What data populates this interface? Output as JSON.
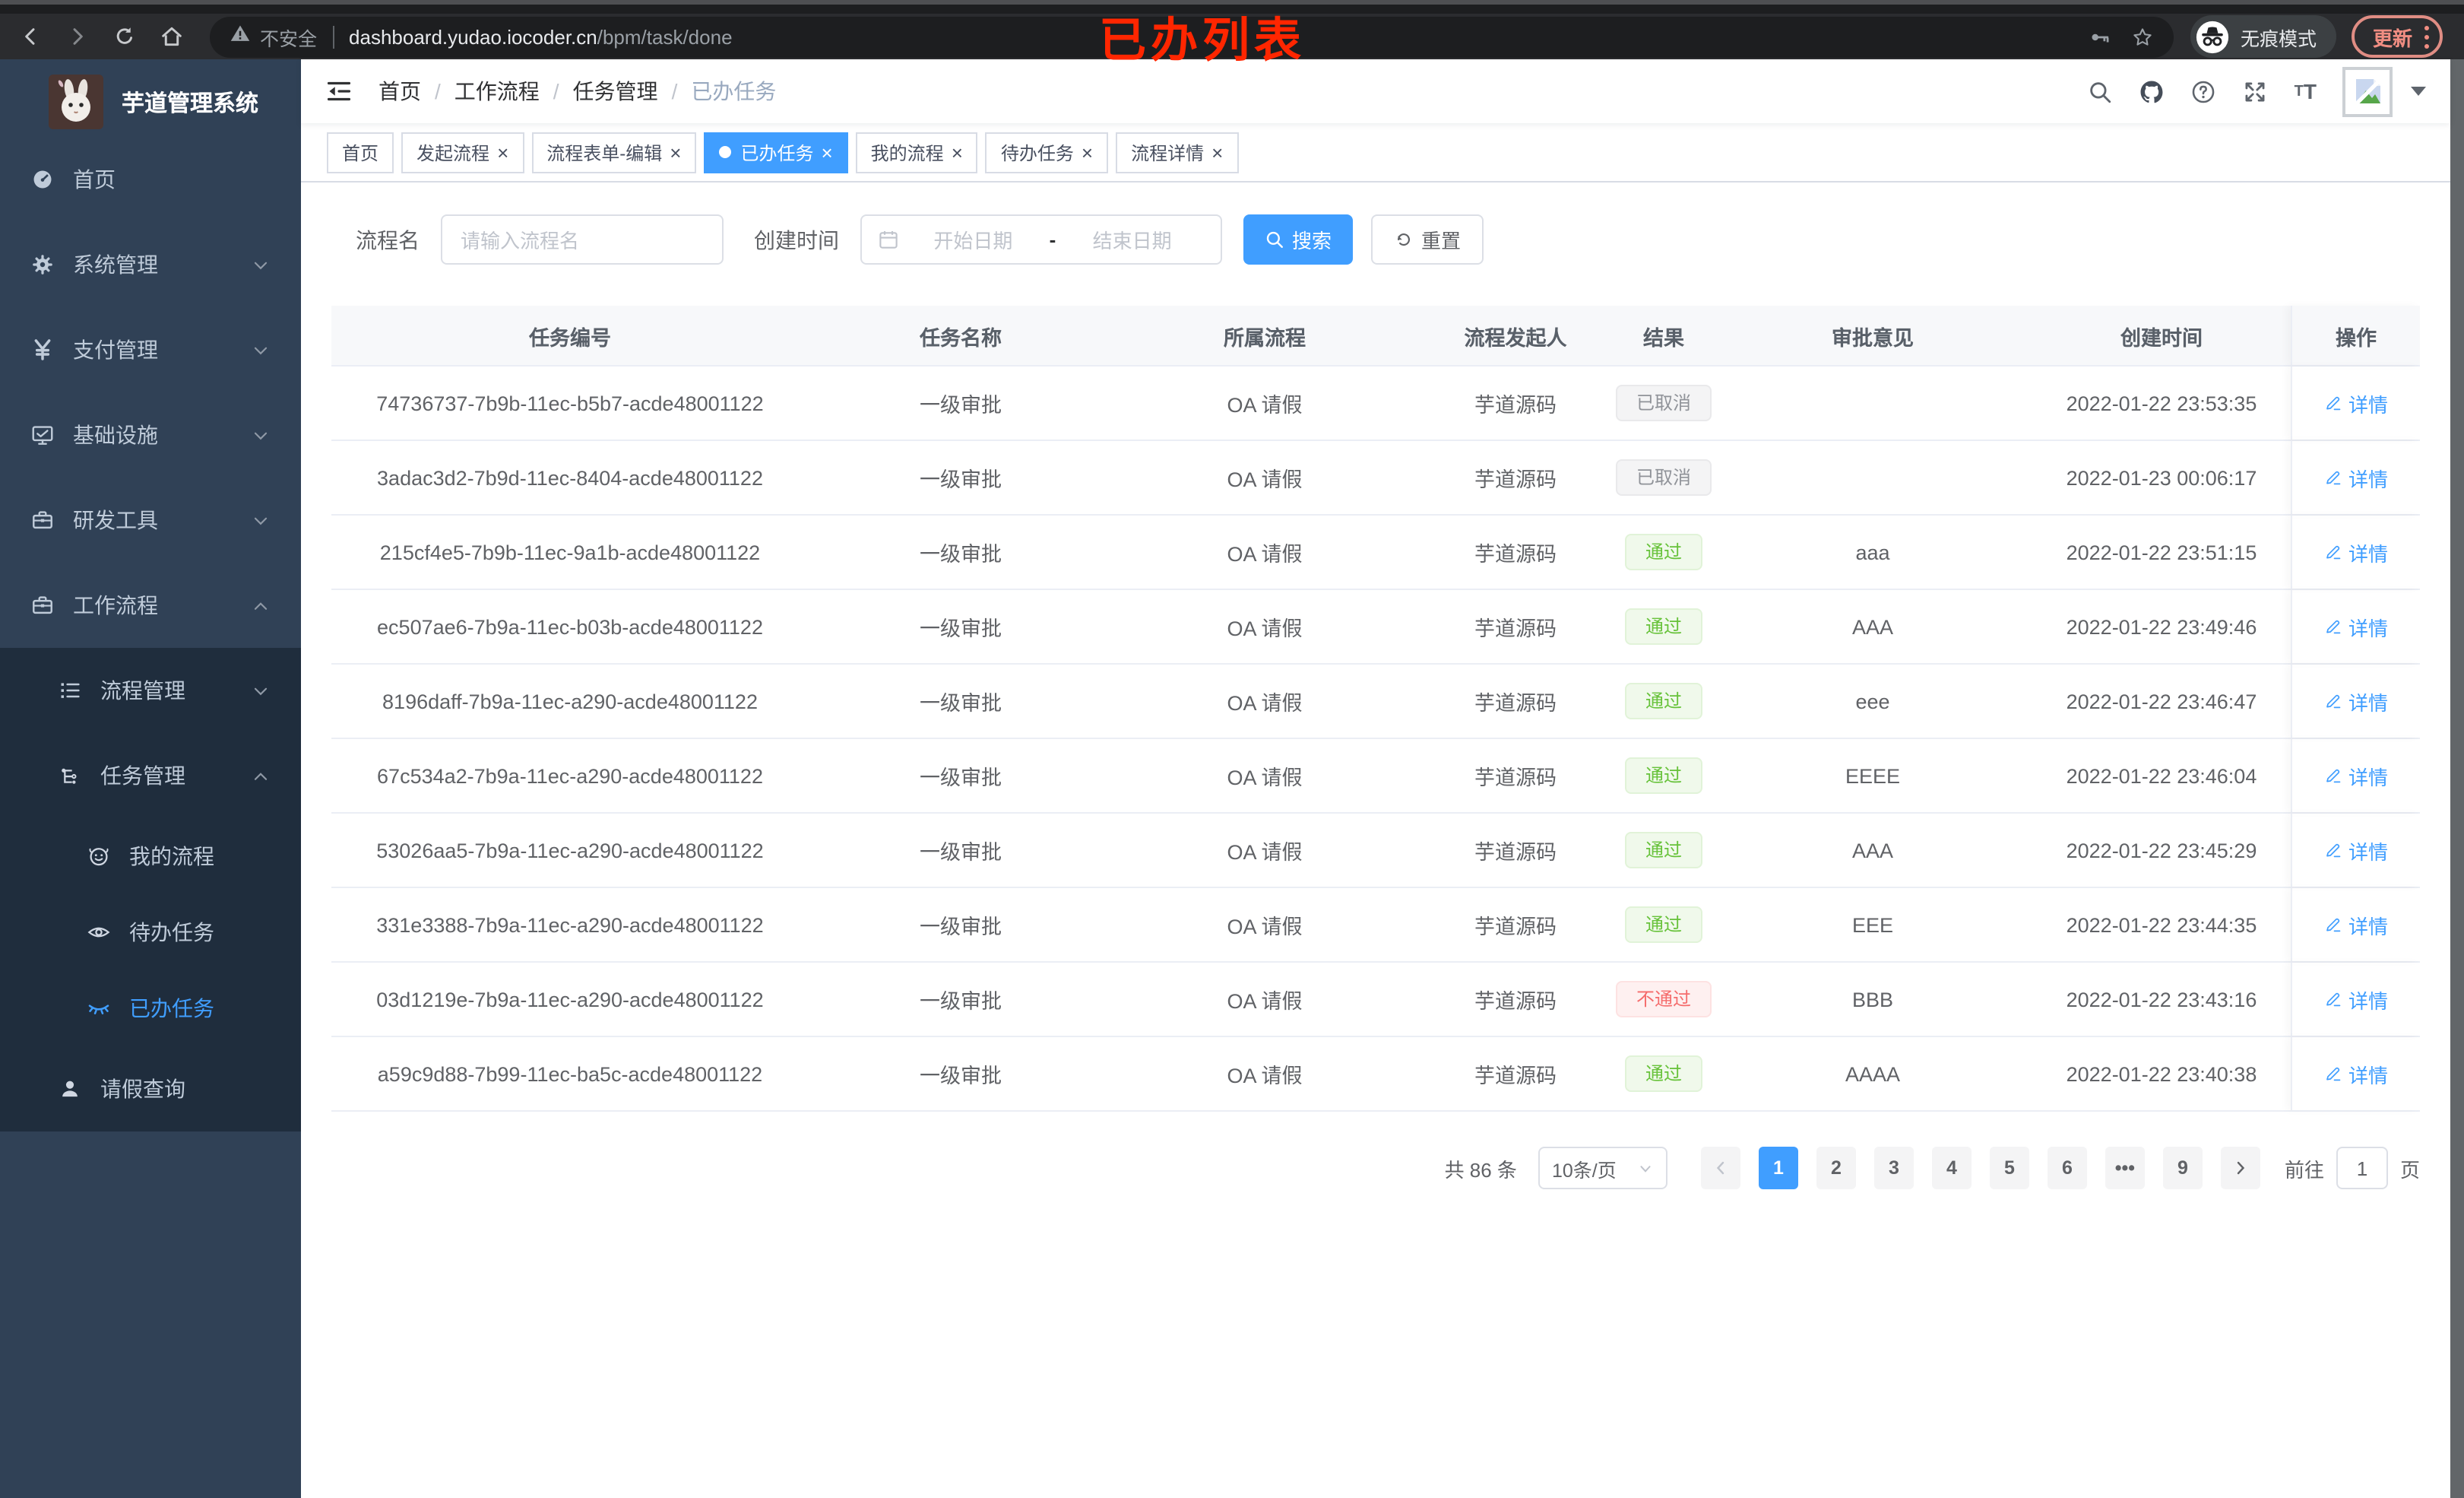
{
  "browser": {
    "security_label": "不安全",
    "url_host": "dashboard.yudao.iocoder.cn",
    "url_path": "/bpm/task/done",
    "incognito_label": "无痕模式",
    "update_label": "更新"
  },
  "annotation": {
    "text": "已办列表",
    "color": "#ff2600"
  },
  "sidebar": {
    "title": "芋道管理系统",
    "items": [
      {
        "name": "home",
        "label": "首页",
        "icon": "dashboard",
        "level": 1,
        "chevron": null,
        "dark": false,
        "active": false
      },
      {
        "name": "system",
        "label": "系统管理",
        "icon": "gear",
        "level": 1,
        "chevron": "down",
        "dark": false,
        "active": false
      },
      {
        "name": "payment",
        "label": "支付管理",
        "icon": "yen",
        "level": 1,
        "chevron": "down",
        "dark": false,
        "active": false
      },
      {
        "name": "infrastructure",
        "label": "基础设施",
        "icon": "monitor",
        "level": 1,
        "chevron": "down",
        "dark": false,
        "active": false
      },
      {
        "name": "devtools",
        "label": "研发工具",
        "icon": "toolbox",
        "level": 1,
        "chevron": "down",
        "dark": false,
        "active": false
      },
      {
        "name": "workflow",
        "label": "工作流程",
        "icon": "toolbox",
        "level": 1,
        "chevron": "up",
        "dark": false,
        "active": false
      },
      {
        "name": "process-mgmt",
        "label": "流程管理",
        "icon": "list",
        "level": 2,
        "chevron": "down",
        "dark": true,
        "active": false
      },
      {
        "name": "task-mgmt",
        "label": "任务管理",
        "icon": "tree",
        "level": 2,
        "chevron": "up",
        "dark": true,
        "active": false
      },
      {
        "name": "my-process",
        "label": "我的流程",
        "icon": "face",
        "level": 3,
        "chevron": null,
        "dark": true,
        "active": false
      },
      {
        "name": "todo-tasks",
        "label": "待办任务",
        "icon": "eye",
        "level": 3,
        "chevron": null,
        "dark": true,
        "active": false
      },
      {
        "name": "done-tasks",
        "label": "已办任务",
        "icon": "eye-closed",
        "level": 3,
        "chevron": null,
        "dark": true,
        "active": true
      },
      {
        "name": "leave-query",
        "label": "请假查询",
        "icon": "user",
        "level": 2,
        "chevron": null,
        "dark": true,
        "active": false
      }
    ]
  },
  "header": {
    "breadcrumb": [
      "首页",
      "工作流程",
      "任务管理",
      "已办任务"
    ]
  },
  "tabs": [
    {
      "name": "home",
      "label": "首页",
      "closable": false,
      "active": false
    },
    {
      "name": "start-process",
      "label": "发起流程",
      "closable": true,
      "active": false
    },
    {
      "name": "form-edit",
      "label": "流程表单-编辑",
      "closable": true,
      "active": false
    },
    {
      "name": "done-tasks",
      "label": "已办任务",
      "closable": true,
      "active": true
    },
    {
      "name": "my-process",
      "label": "我的流程",
      "closable": true,
      "active": false
    },
    {
      "name": "todo-tasks",
      "label": "待办任务",
      "closable": true,
      "active": false
    },
    {
      "name": "process-detail",
      "label": "流程详情",
      "closable": true,
      "active": false
    }
  ],
  "filters": {
    "name_label": "流程名",
    "name_placeholder": "请输入流程名",
    "time_label": "创建时间",
    "start_placeholder": "开始日期",
    "range_separator": "-",
    "end_placeholder": "结束日期",
    "search_label": "搜索",
    "reset_label": "重置"
  },
  "table": {
    "columns": [
      "任务编号",
      "任务名称",
      "所属流程",
      "流程发起人",
      "结果",
      "审批意见",
      "创建时间",
      "操作"
    ],
    "action_label": "详情",
    "rows": [
      {
        "id": "74736737-7b9b-11ec-b5b7-acde48001122",
        "name": "一级审批",
        "process": "OA 请假",
        "starter": "芋道源码",
        "result": "已取消",
        "result_type": "info",
        "opinion": "",
        "created": "2022-01-22 23:53:35"
      },
      {
        "id": "3adac3d2-7b9d-11ec-8404-acde48001122",
        "name": "一级审批",
        "process": "OA 请假",
        "starter": "芋道源码",
        "result": "已取消",
        "result_type": "info",
        "opinion": "",
        "created": "2022-01-23 00:06:17"
      },
      {
        "id": "215cf4e5-7b9b-11ec-9a1b-acde48001122",
        "name": "一级审批",
        "process": "OA 请假",
        "starter": "芋道源码",
        "result": "通过",
        "result_type": "success",
        "opinion": "aaa",
        "created": "2022-01-22 23:51:15"
      },
      {
        "id": "ec507ae6-7b9a-11ec-b03b-acde48001122",
        "name": "一级审批",
        "process": "OA 请假",
        "starter": "芋道源码",
        "result": "通过",
        "result_type": "success",
        "opinion": "AAA",
        "created": "2022-01-22 23:49:46"
      },
      {
        "id": "8196daff-7b9a-11ec-a290-acde48001122",
        "name": "一级审批",
        "process": "OA 请假",
        "starter": "芋道源码",
        "result": "通过",
        "result_type": "success",
        "opinion": "eee",
        "created": "2022-01-22 23:46:47"
      },
      {
        "id": "67c534a2-7b9a-11ec-a290-acde48001122",
        "name": "一级审批",
        "process": "OA 请假",
        "starter": "芋道源码",
        "result": "通过",
        "result_type": "success",
        "opinion": "EEEE",
        "created": "2022-01-22 23:46:04"
      },
      {
        "id": "53026aa5-7b9a-11ec-a290-acde48001122",
        "name": "一级审批",
        "process": "OA 请假",
        "starter": "芋道源码",
        "result": "通过",
        "result_type": "success",
        "opinion": "AAA",
        "created": "2022-01-22 23:45:29"
      },
      {
        "id": "331e3388-7b9a-11ec-a290-acde48001122",
        "name": "一级审批",
        "process": "OA 请假",
        "starter": "芋道源码",
        "result": "通过",
        "result_type": "success",
        "opinion": "EEE",
        "created": "2022-01-22 23:44:35"
      },
      {
        "id": "03d1219e-7b9a-11ec-a290-acde48001122",
        "name": "一级审批",
        "process": "OA 请假",
        "starter": "芋道源码",
        "result": "不通过",
        "result_type": "danger",
        "opinion": "BBB",
        "created": "2022-01-22 23:43:16"
      },
      {
        "id": "a59c9d88-7b99-11ec-ba5c-acde48001122",
        "name": "一级审批",
        "process": "OA 请假",
        "starter": "芋道源码",
        "result": "通过",
        "result_type": "success",
        "opinion": "AAAA",
        "created": "2022-01-22 23:40:38"
      }
    ]
  },
  "pagination": {
    "total_label": "共 86 条",
    "page_size": "10条/页",
    "pages": [
      {
        "label": "1",
        "active": true
      },
      {
        "label": "2"
      },
      {
        "label": "3"
      },
      {
        "label": "4"
      },
      {
        "label": "5"
      },
      {
        "label": "6"
      },
      {
        "label": "•••",
        "ellipsis": true
      },
      {
        "label": "9"
      }
    ],
    "goto_label": "前往",
    "goto_value": "1",
    "unit_label": "页"
  },
  "colors": {
    "accent": "#409eff",
    "sidebar_bg": "#304156",
    "sidebar_submenu_bg": "#1f2d3d",
    "success": "#67c23a",
    "danger": "#f56c6c",
    "info": "#909399"
  }
}
